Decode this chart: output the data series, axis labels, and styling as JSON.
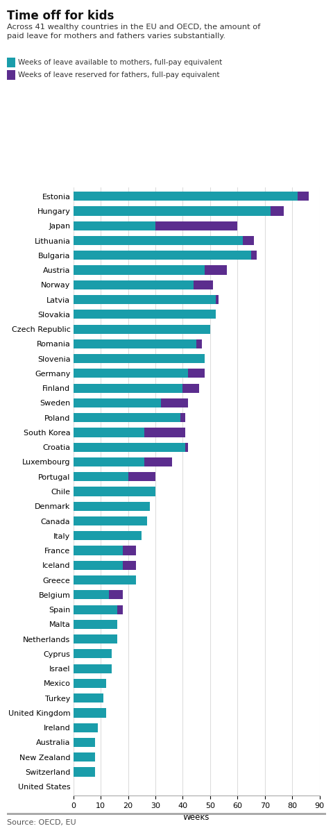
{
  "title": "Time off for kids",
  "subtitle": "Across 41 wealthy countries in the EU and OECD, the amount of\npaid leave for mothers and fathers varies substantially.",
  "legend1": "Weeks of leave available to mothers, full-pay equivalent",
  "legend2": "Weeks of leave reserved for fathers, full-pay equivalent",
  "source": "Source: OECD, EU",
  "xlabel": "Weeks",
  "color_mothers": "#1a9daa",
  "color_fathers": "#5b2d8e",
  "countries": [
    "Estonia",
    "Hungary",
    "Japan",
    "Lithuania",
    "Bulgaria",
    "Austria",
    "Norway",
    "Latvia",
    "Slovakia",
    "Czech Republic",
    "Romania",
    "Slovenia",
    "Germany",
    "Finland",
    "Sweden",
    "Poland",
    "South Korea",
    "Croatia",
    "Luxembourg",
    "Portugal",
    "Chile",
    "Denmark",
    "Canada",
    "Italy",
    "France",
    "Iceland",
    "Greece",
    "Belgium",
    "Spain",
    "Malta",
    "Netherlands",
    "Cyprus",
    "Israel",
    "Mexico",
    "Turkey",
    "United Kingdom",
    "Ireland",
    "Australia",
    "New Zealand",
    "Switzerland",
    "United States"
  ],
  "mothers": [
    82,
    72,
    30,
    62,
    65,
    48,
    44,
    52,
    52,
    50,
    45,
    48,
    42,
    40,
    32,
    39,
    26,
    41,
    26,
    20,
    30,
    28,
    27,
    25,
    18,
    18,
    23,
    13,
    16,
    16,
    16,
    14,
    14,
    12,
    11,
    12,
    9,
    8,
    8,
    8,
    0
  ],
  "fathers": [
    4,
    5,
    30,
    4,
    2,
    8,
    7,
    1,
    0,
    0,
    2,
    0,
    6,
    6,
    10,
    2,
    15,
    1,
    10,
    10,
    0,
    0,
    0,
    0,
    5,
    5,
    0,
    5,
    2,
    0,
    0,
    0,
    0,
    0,
    0,
    0,
    0,
    0,
    0,
    0,
    0
  ],
  "xlim": [
    0,
    90
  ],
  "xticks": [
    0,
    10,
    20,
    30,
    40,
    50,
    60,
    70,
    80,
    90
  ],
  "background_color": "#ffffff",
  "grid_color": "#dddddd"
}
